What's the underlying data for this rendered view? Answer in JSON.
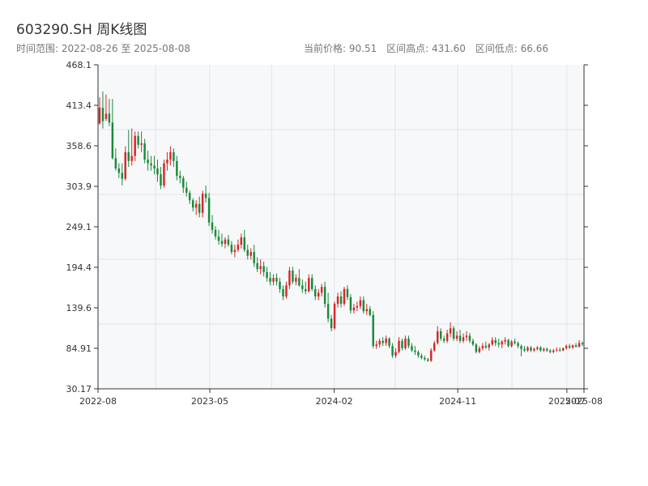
{
  "header": {
    "title": "603290.SH 周K线图",
    "date_range": "时间范围: 2022-08-26 至 2025-08-08",
    "current_price": "当前价格: 90.51",
    "range_high": "区间高点: 431.60",
    "range_low": "区间低点: 66.66"
  },
  "colors": {
    "up": "#d62728",
    "down": "#1a8a3a",
    "grid": "#e1e5ea",
    "plot_bg": "#f7f8fa",
    "axis": "#333333"
  },
  "chart_data": {
    "type": "candlestick",
    "title": "603290.SH 周K线图",
    "ylim": [
      30.17,
      468.1
    ],
    "yticks": [
      "468.1",
      "413.4",
      "358.6",
      "303.9",
      "249.1",
      "194.4",
      "139.6",
      "84.91",
      "30.17"
    ],
    "xticks": [
      "2022-08",
      "2023-05",
      "2024-02",
      "2024-11",
      "2025-07",
      "2025-08"
    ],
    "grid": true,
    "date_range": [
      "2022-08-26",
      "2025-08-08"
    ],
    "candles": [
      [
        389,
        424,
        387,
        410
      ],
      [
        410,
        432,
        382,
        392
      ],
      [
        395,
        428,
        392,
        402
      ],
      [
        402,
        422,
        385,
        390
      ],
      [
        390,
        422,
        340,
        342
      ],
      [
        342,
        355,
        325,
        328
      ],
      [
        328,
        335,
        315,
        322
      ],
      [
        322,
        335,
        305,
        314
      ],
      [
        314,
        358,
        312,
        350
      ],
      [
        350,
        380,
        330,
        338
      ],
      [
        338,
        382,
        332,
        345
      ],
      [
        345,
        378,
        338,
        372
      ],
      [
        372,
        378,
        355,
        360
      ],
      [
        360,
        378,
        350,
        362
      ],
      [
        362,
        368,
        335,
        340
      ],
      [
        340,
        352,
        325,
        335
      ],
      [
        335,
        345,
        325,
        332
      ],
      [
        332,
        345,
        320,
        328
      ],
      [
        328,
        340,
        310,
        320
      ],
      [
        320,
        330,
        300,
        305
      ],
      [
        305,
        340,
        302,
        335
      ],
      [
        335,
        350,
        325,
        340
      ],
      [
        340,
        358,
        332,
        350
      ],
      [
        350,
        355,
        330,
        338
      ],
      [
        338,
        345,
        312,
        318
      ],
      [
        318,
        325,
        308,
        315
      ],
      [
        315,
        318,
        295,
        302
      ],
      [
        302,
        310,
        290,
        295
      ],
      [
        295,
        298,
        280,
        285
      ],
      [
        285,
        288,
        270,
        275
      ],
      [
        275,
        285,
        265,
        280
      ],
      [
        280,
        290,
        262,
        268
      ],
      [
        268,
        298,
        262,
        294
      ],
      [
        294,
        305,
        282,
        288
      ],
      [
        288,
        295,
        250,
        255
      ],
      [
        255,
        265,
        240,
        245
      ],
      [
        245,
        250,
        232,
        236
      ],
      [
        236,
        245,
        225,
        230
      ],
      [
        230,
        240,
        222,
        226
      ],
      [
        226,
        235,
        220,
        232
      ],
      [
        232,
        238,
        222,
        225
      ],
      [
        225,
        230,
        212,
        215
      ],
      [
        215,
        225,
        208,
        218
      ],
      [
        218,
        232,
        215,
        225
      ],
      [
        225,
        240,
        220,
        235
      ],
      [
        235,
        245,
        215,
        218
      ],
      [
        218,
        225,
        205,
        210
      ],
      [
        210,
        220,
        205,
        215
      ],
      [
        215,
        225,
        195,
        200
      ],
      [
        200,
        208,
        188,
        192
      ],
      [
        192,
        205,
        185,
        196
      ],
      [
        196,
        202,
        182,
        188
      ],
      [
        188,
        195,
        175,
        180
      ],
      [
        180,
        188,
        170,
        175
      ],
      [
        175,
        185,
        170,
        180
      ],
      [
        180,
        186,
        170,
        175
      ],
      [
        175,
        180,
        160,
        165
      ],
      [
        165,
        170,
        150,
        155
      ],
      [
        155,
        175,
        152,
        170
      ],
      [
        170,
        195,
        165,
        190
      ],
      [
        190,
        195,
        172,
        175
      ],
      [
        175,
        185,
        170,
        180
      ],
      [
        180,
        192,
        168,
        170
      ],
      [
        170,
        178,
        160,
        165
      ],
      [
        165,
        175,
        158,
        162
      ],
      [
        162,
        185,
        160,
        180
      ],
      [
        180,
        185,
        162,
        165
      ],
      [
        165,
        170,
        150,
        155
      ],
      [
        155,
        165,
        150,
        160
      ],
      [
        160,
        172,
        155,
        168
      ],
      [
        168,
        175,
        140,
        145
      ],
      [
        145,
        160,
        120,
        125
      ],
      [
        125,
        130,
        108,
        112
      ],
      [
        112,
        148,
        110,
        145
      ],
      [
        145,
        160,
        140,
        155
      ],
      [
        155,
        162,
        140,
        145
      ],
      [
        145,
        168,
        142,
        165
      ],
      [
        165,
        170,
        150,
        154
      ],
      [
        154,
        158,
        132,
        136
      ],
      [
        136,
        145,
        132,
        140
      ],
      [
        140,
        148,
        135,
        142
      ],
      [
        142,
        155,
        138,
        150
      ],
      [
        150,
        155,
        132,
        135
      ],
      [
        135,
        145,
        130,
        138
      ],
      [
        138,
        142,
        128,
        130
      ],
      [
        130,
        135,
        85,
        88
      ],
      [
        88,
        95,
        84,
        90
      ],
      [
        90,
        98,
        86,
        95
      ],
      [
        95,
        100,
        88,
        92
      ],
      [
        92,
        102,
        88,
        98
      ],
      [
        98,
        100,
        85,
        88
      ],
      [
        88,
        92,
        72,
        75
      ],
      [
        75,
        85,
        72,
        80
      ],
      [
        80,
        100,
        78,
        95
      ],
      [
        95,
        98,
        82,
        85
      ],
      [
        85,
        102,
        83,
        98
      ],
      [
        98,
        102,
        85,
        88
      ],
      [
        88,
        92,
        80,
        82
      ],
      [
        82,
        88,
        76,
        80
      ],
      [
        80,
        82,
        72,
        75
      ],
      [
        75,
        78,
        70,
        72
      ],
      [
        72,
        75,
        68,
        70
      ],
      [
        70,
        72,
        66.66,
        68
      ],
      [
        68,
        85,
        66.66,
        82
      ],
      [
        82,
        95,
        80,
        92
      ],
      [
        92,
        115,
        90,
        108
      ],
      [
        108,
        112,
        95,
        98
      ],
      [
        98,
        102,
        92,
        95
      ],
      [
        95,
        110,
        92,
        105
      ],
      [
        105,
        120,
        100,
        112
      ],
      [
        112,
        115,
        95,
        98
      ],
      [
        98,
        108,
        95,
        102
      ],
      [
        102,
        110,
        92,
        95
      ],
      [
        95,
        105,
        92,
        100
      ],
      [
        100,
        108,
        95,
        102
      ],
      [
        102,
        106,
        92,
        95
      ],
      [
        95,
        98,
        88,
        90
      ],
      [
        90,
        92,
        78,
        80
      ],
      [
        80,
        88,
        78,
        85
      ],
      [
        85,
        92,
        82,
        88
      ],
      [
        88,
        94,
        84,
        86
      ],
      [
        86,
        92,
        82,
        90
      ],
      [
        90,
        100,
        88,
        96
      ],
      [
        96,
        100,
        88,
        92
      ],
      [
        92,
        98,
        86,
        90
      ],
      [
        90,
        96,
        85,
        94
      ],
      [
        94,
        100,
        90,
        96
      ],
      [
        96,
        98,
        86,
        88
      ],
      [
        88,
        96,
        86,
        94
      ],
      [
        94,
        98,
        90,
        92
      ],
      [
        92,
        94,
        85,
        88
      ],
      [
        88,
        90,
        74,
        84
      ],
      [
        84,
        88,
        80,
        82
      ],
      [
        82,
        88,
        80,
        86
      ],
      [
        86,
        88,
        80,
        82
      ],
      [
        82,
        86,
        80,
        84
      ],
      [
        84,
        88,
        82,
        86
      ],
      [
        86,
        88,
        80,
        82
      ],
      [
        82,
        86,
        80,
        84
      ],
      [
        84,
        86,
        80,
        82
      ],
      [
        82,
        84,
        78,
        80
      ],
      [
        80,
        84,
        78,
        82
      ],
      [
        82,
        86,
        80,
        83
      ],
      [
        83,
        86,
        80,
        82
      ],
      [
        82,
        86,
        81,
        85
      ],
      [
        85,
        90,
        83,
        88
      ],
      [
        88,
        91,
        84,
        86
      ],
      [
        86,
        90,
        84,
        89
      ],
      [
        89,
        92,
        86,
        87
      ],
      [
        87,
        96,
        86,
        92
      ],
      [
        92,
        94,
        88,
        90.51
      ]
    ]
  }
}
